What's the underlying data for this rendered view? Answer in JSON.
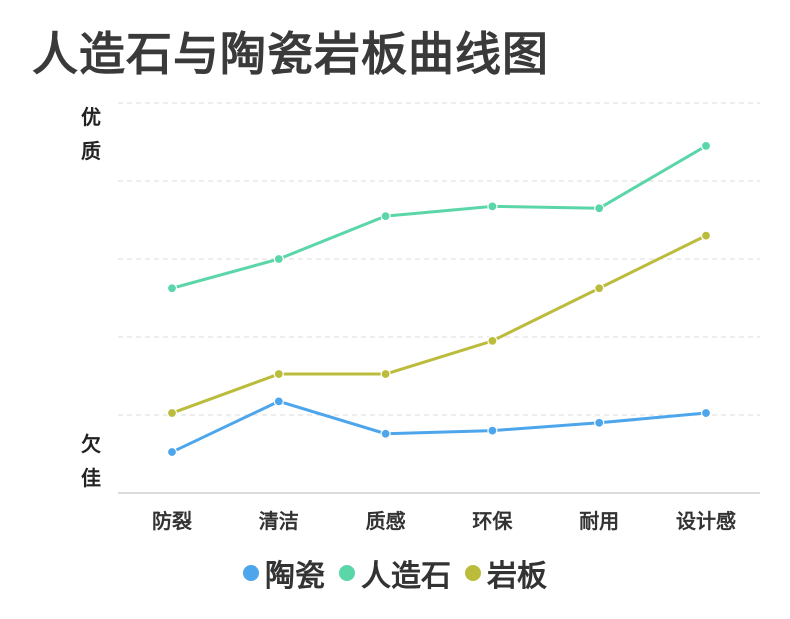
{
  "chart_data": {
    "type": "line",
    "title": "人造石与陶瓷岩板曲线图",
    "xlabel": "",
    "ylabel_top": "优质",
    "ylabel_bottom": "欠佳",
    "categories": [
      "防裂",
      "清洁",
      "质感",
      "环保",
      "耐用",
      "设计感"
    ],
    "ylim": [
      0,
      100
    ],
    "grid": true,
    "legend_position": "bottom",
    "series": [
      {
        "name": "陶瓷",
        "color": "#4da6ec",
        "values": [
          10.5,
          23.5,
          15.2,
          16,
          18,
          20.5
        ]
      },
      {
        "name": "人造石",
        "color": "#5bd6a8",
        "values": [
          52.5,
          60,
          71,
          73.5,
          73,
          89
        ]
      },
      {
        "name": "岩板",
        "color": "#bcbc3c",
        "values": [
          20.5,
          30.5,
          30.5,
          39,
          52.5,
          66
        ]
      }
    ]
  }
}
